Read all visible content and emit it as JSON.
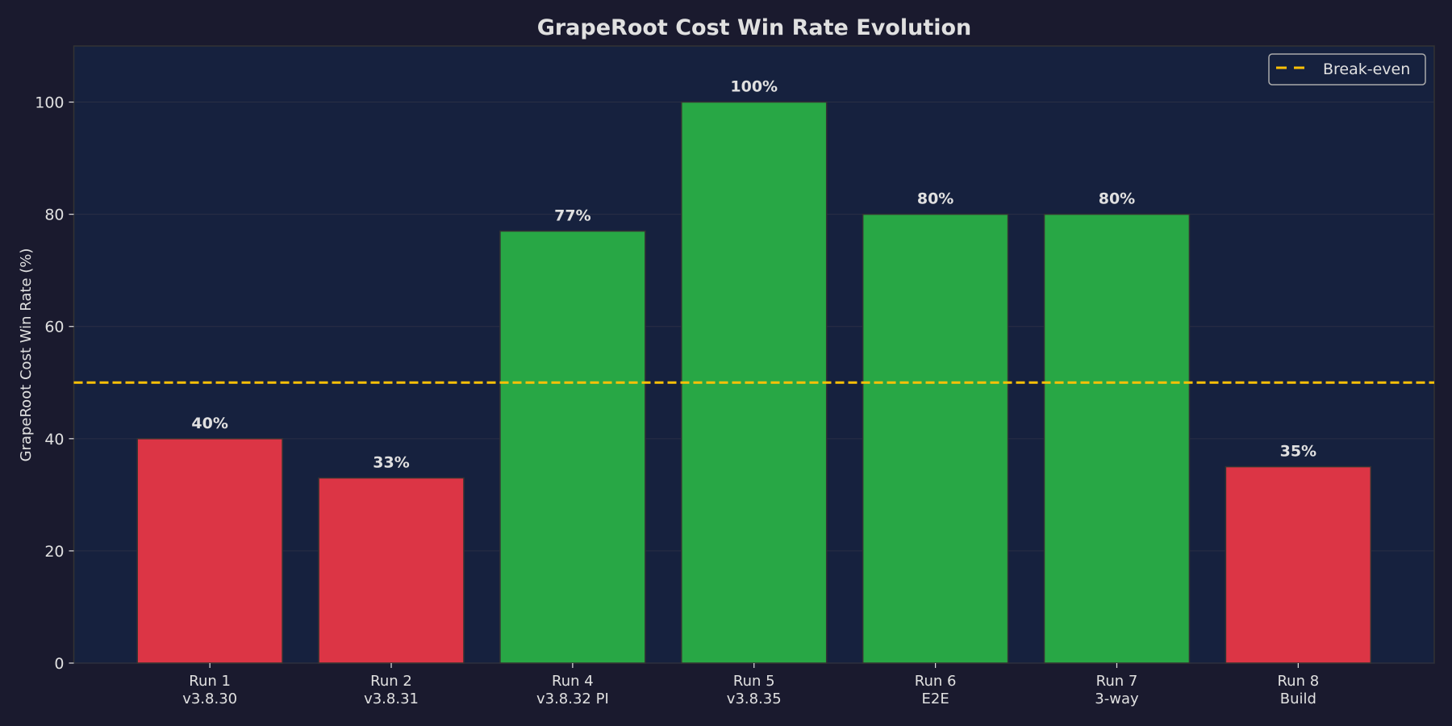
{
  "chart_data": {
    "type": "bar",
    "title": "GrapeRoot Cost Win Rate Evolution",
    "xlabel": "",
    "ylabel": "GrapeRoot Cost Win Rate (%)",
    "ylim": [
      0,
      110
    ],
    "yticks": [
      0,
      20,
      40,
      60,
      80,
      100
    ],
    "grid": true,
    "legend_placement": "top-right",
    "categories": [
      [
        "Run 1",
        "v3.8.30"
      ],
      [
        "Run 2",
        "v3.8.31"
      ],
      [
        "Run 4",
        "v3.8.32 PI"
      ],
      [
        "Run 5",
        "v3.8.35"
      ],
      [
        "Run 6",
        "E2E"
      ],
      [
        "Run 7",
        "3-way"
      ],
      [
        "Run 8",
        "Build"
      ]
    ],
    "values": [
      40,
      33,
      77,
      100,
      80,
      80,
      35
    ],
    "data_labels": [
      "40%",
      "33%",
      "77%",
      "100%",
      "80%",
      "80%",
      "35%"
    ],
    "reference_line": {
      "name": "Break-even",
      "y": 50,
      "style": "dashed",
      "color": "#ffc107"
    },
    "colors": {
      "below": "#dc3545",
      "above": "#28a745",
      "background": "#1a1a2e",
      "plot_background": "#16213e",
      "text": "#e0e0e0"
    }
  }
}
